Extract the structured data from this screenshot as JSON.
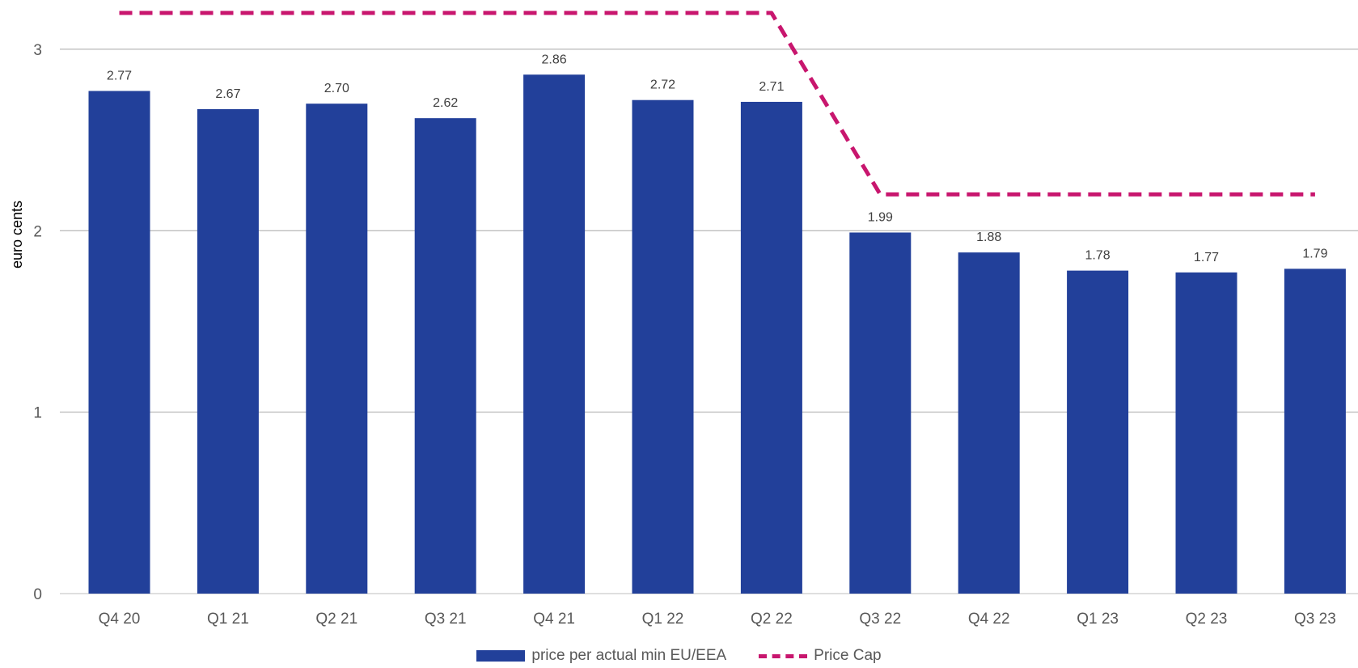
{
  "chart_data": {
    "type": "bar",
    "categories": [
      "Q4 20",
      "Q1 21",
      "Q2 21",
      "Q3 21",
      "Q4 21",
      "Q1 22",
      "Q2 22",
      "Q3 22",
      "Q4 22",
      "Q1 23",
      "Q2 23",
      "Q3 23"
    ],
    "series": [
      {
        "name": "price per actual min EU/EEA",
        "type": "bar",
        "values": [
          2.77,
          2.67,
          2.7,
          2.62,
          2.86,
          2.72,
          2.71,
          1.99,
          1.88,
          1.78,
          1.77,
          1.79
        ],
        "labels": [
          "2.77",
          "2.67",
          "2.70",
          "2.62",
          "2.86",
          "2.72",
          "2.71",
          "1.99",
          "1.88",
          "1.78",
          "1.77",
          "1.79"
        ],
        "color": "#22409A"
      },
      {
        "name": "Price Cap",
        "type": "line",
        "style": "dashed",
        "values": [
          3.2,
          3.2,
          3.2,
          3.2,
          3.2,
          3.2,
          3.2,
          2.2,
          2.2,
          2.2,
          2.2,
          2.2
        ],
        "color": "#C8166E"
      }
    ],
    "ylabel": "euro cents",
    "xlabel": "",
    "ylim": [
      0,
      3.2
    ],
    "yticks": [
      "0",
      "1",
      "2",
      "3"
    ],
    "grid": true,
    "legend_position": "bottom"
  }
}
